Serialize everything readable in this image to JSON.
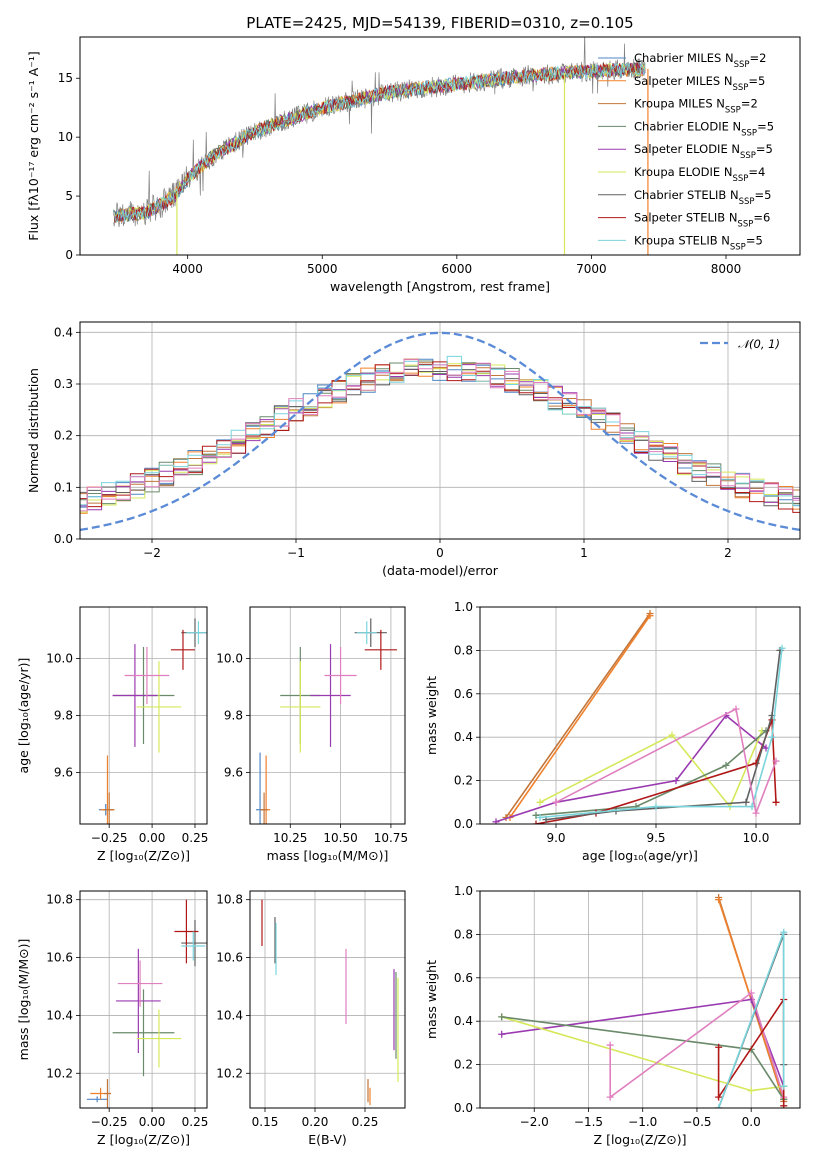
{
  "title": "PLATE=2425, MJD=54139, FIBERID=0310, z=0.105",
  "colors": {
    "Chabrier MILES": "#4f86c6",
    "Salpeter MILES": "#f0812c",
    "Kroupa MILES": "#c2763a",
    "Chabrier ELODIE": "#6a8a6a",
    "Salpeter ELODIE": "#9a3ab0",
    "Kroupa ELODIE": "#d6e85a",
    "Chabrier STELIB": "#606060",
    "Salpeter STELIB": "#b01818",
    "Kroupa STELIB": "#7ad4dc",
    "extra": "#e07fbf",
    "data": "#808080",
    "normal": "#5b8bd6"
  },
  "chart_data": [
    {
      "id": "spectrum",
      "type": "line",
      "xlabel": "wavelength [Angstrom, rest frame]",
      "ylabel": "Flux [fλ10⁻¹⁷ erg cm⁻² s⁻¹ A⁻¹]",
      "xlim": [
        3200,
        8550
      ],
      "ylim": [
        0,
        18.5
      ],
      "xticks": [
        "4000",
        "5000",
        "6000",
        "7000",
        "8000"
      ],
      "yticks": [
        "0",
        "5",
        "10",
        "15"
      ],
      "legend": [
        {
          "name": "Chabrier MILES",
          "nssp": "2"
        },
        {
          "name": "Salpeter MILES",
          "nssp": "5"
        },
        {
          "name": "Kroupa MILES",
          "nssp": "2"
        },
        {
          "name": "Chabrier ELODIE",
          "nssp": "5"
        },
        {
          "name": "Salpeter ELODIE",
          "nssp": "5"
        },
        {
          "name": "Kroupa ELODIE",
          "nssp": "4"
        },
        {
          "name": "Chabrier STELIB",
          "nssp": "5"
        },
        {
          "name": "Salpeter STELIB",
          "nssp": "6"
        },
        {
          "name": "Kroupa STELIB",
          "nssp": "5"
        }
      ],
      "continuum": [
        [
          3450,
          3.3
        ],
        [
          3700,
          3.6
        ],
        [
          3900,
          5.0
        ],
        [
          4000,
          6.5
        ],
        [
          4200,
          8.5
        ],
        [
          4500,
          10.5
        ],
        [
          5000,
          12.5
        ],
        [
          5500,
          13.8
        ],
        [
          6000,
          14.5
        ],
        [
          6500,
          15.2
        ],
        [
          7000,
          15.6
        ],
        [
          7400,
          15.8
        ]
      ]
    },
    {
      "id": "residuals",
      "type": "line",
      "xlabel": "(data-model)/error",
      "ylabel": "Normed distribution",
      "xlim": [
        -2.5,
        2.5
      ],
      "ylim": [
        0,
        0.42
      ],
      "xticks": [
        "−2",
        "−1",
        "0",
        "1",
        "2"
      ],
      "yticks": [
        "0.0",
        "0.1",
        "0.2",
        "0.3",
        "0.4"
      ],
      "legend_label": "𝒩(0, 1)"
    },
    {
      "id": "age-vs-Z",
      "type": "scatter",
      "xlabel": "Z [log₁₀(Z/Z⊙)]",
      "ylabel": "age  [log₁₀(age/yr)]",
      "xlim": [
        -0.42,
        0.32
      ],
      "ylim": [
        9.42,
        10.18
      ],
      "xticks": [
        "−0.25",
        "0.00",
        "0.25"
      ],
      "yticks": [
        "9.6",
        "9.8",
        "10.0"
      ],
      "points": [
        {
          "c": "Chabrier MILES",
          "x": -0.27,
          "y": 9.47,
          "xe": 0.04,
          "ye": 0.02
        },
        {
          "c": "Salpeter MILES",
          "x": -0.26,
          "y": 9.47,
          "xe": 0.04,
          "ye": 0.19
        },
        {
          "c": "Kroupa MILES",
          "x": -0.25,
          "y": 9.47,
          "xe": 0.03,
          "ye": 0.06
        },
        {
          "c": "Chabrier ELODIE",
          "x": -0.05,
          "y": 9.87,
          "xe": 0.18,
          "ye": 0.17
        },
        {
          "c": "Salpeter ELODIE",
          "x": -0.1,
          "y": 9.87,
          "xe": 0.13,
          "ye": 0.18
        },
        {
          "c": "Kroupa ELODIE",
          "x": 0.04,
          "y": 9.83,
          "xe": 0.13,
          "ye": 0.16
        },
        {
          "c": "Chabrier STELIB",
          "x": 0.25,
          "y": 10.09,
          "xe": 0.08,
          "ye": 0.05
        },
        {
          "c": "Salpeter STELIB",
          "x": 0.18,
          "y": 10.03,
          "xe": 0.07,
          "ye": 0.07
        },
        {
          "c": "Kroupa STELIB",
          "x": 0.27,
          "y": 10.09,
          "xe": 0.07,
          "ye": 0.04
        },
        {
          "c": "extra",
          "x": -0.03,
          "y": 9.94,
          "xe": 0.13,
          "ye": 0.1
        }
      ]
    },
    {
      "id": "age-vs-mass",
      "type": "scatter",
      "xlabel": "mass [log₁₀(M/M⊙)]",
      "xlim": [
        10.05,
        10.82
      ],
      "ylim": [
        9.42,
        10.18
      ],
      "xticks": [
        "10.25",
        "10.50",
        "10.75"
      ],
      "yticks": [
        "9.6",
        "9.8",
        "10.0"
      ],
      "points": [
        {
          "c": "Chabrier MILES",
          "x": 10.1,
          "y": 9.47,
          "xe": 0.02,
          "ye": 0.2
        },
        {
          "c": "Salpeter MILES",
          "x": 10.13,
          "y": 9.47,
          "xe": 0.02,
          "ye": 0.19
        },
        {
          "c": "Kroupa MILES",
          "x": 10.12,
          "y": 9.47,
          "xe": 0.02,
          "ye": 0.06
        },
        {
          "c": "Chabrier ELODIE",
          "x": 10.3,
          "y": 9.87,
          "xe": 0.1,
          "ye": 0.17
        },
        {
          "c": "Salpeter ELODIE",
          "x": 10.45,
          "y": 9.87,
          "xe": 0.1,
          "ye": 0.18
        },
        {
          "c": "Kroupa ELODIE",
          "x": 10.3,
          "y": 9.83,
          "xe": 0.1,
          "ye": 0.16
        },
        {
          "c": "Chabrier STELIB",
          "x": 10.65,
          "y": 10.09,
          "xe": 0.08,
          "ye": 0.05
        },
        {
          "c": "Salpeter STELIB",
          "x": 10.7,
          "y": 10.03,
          "xe": 0.08,
          "ye": 0.07
        },
        {
          "c": "Kroupa STELIB",
          "x": 10.63,
          "y": 10.09,
          "xe": 0.05,
          "ye": 0.04
        },
        {
          "c": "extra",
          "x": 10.5,
          "y": 9.94,
          "xe": 0.08,
          "ye": 0.1
        }
      ]
    },
    {
      "id": "weight-vs-age",
      "type": "line",
      "xlabel": "age  [log₁₀(age/yr)]",
      "ylabel": "mass weight",
      "xlim": [
        8.62,
        10.22
      ],
      "ylim": [
        0,
        1
      ],
      "xticks": [
        "9.0",
        "9.5",
        "10.0"
      ],
      "yticks": [
        "0.0",
        "0.2",
        "0.4",
        "0.6",
        "0.8",
        "1.0"
      ],
      "series": [
        {
          "c": "Kroupa MILES",
          "pts": [
            [
              8.75,
              0.03
            ],
            [
              9.47,
              0.97
            ]
          ]
        },
        {
          "c": "Salpeter MILES",
          "pts": [
            [
              8.77,
              0.03
            ],
            [
              9.47,
              0.96
            ]
          ]
        },
        {
          "c": "Salpeter ELODIE",
          "pts": [
            [
              8.7,
              0.01
            ],
            [
              9.0,
              0.1
            ],
            [
              9.6,
              0.2
            ],
            [
              9.85,
              0.5
            ],
            [
              10.05,
              0.35
            ]
          ]
        },
        {
          "c": "Kroupa ELODIE",
          "pts": [
            [
              8.92,
              0.1
            ],
            [
              9.58,
              0.41
            ],
            [
              9.87,
              0.08
            ],
            [
              10.03,
              0.43
            ]
          ]
        },
        {
          "c": "Chabrier ELODIE",
          "pts": [
            [
              8.9,
              0.04
            ],
            [
              9.4,
              0.08
            ],
            [
              9.85,
              0.27
            ],
            [
              10.05,
              0.43
            ]
          ]
        },
        {
          "c": "Salpeter STELIB",
          "pts": [
            [
              8.9,
              0.0
            ],
            [
              9.2,
              0.05
            ],
            [
              10.0,
              0.28
            ],
            [
              10.08,
              0.48
            ],
            [
              10.1,
              0.1
            ]
          ]
        },
        {
          "c": "Chabrier STELIB",
          "pts": [
            [
              8.95,
              0.02
            ],
            [
              9.3,
              0.06
            ],
            [
              9.95,
              0.1
            ],
            [
              10.08,
              0.5
            ],
            [
              10.12,
              0.8
            ]
          ]
        },
        {
          "c": "Kroupa STELIB",
          "pts": [
            [
              8.92,
              0.03
            ],
            [
              9.5,
              0.08
            ],
            [
              9.98,
              0.08
            ],
            [
              10.08,
              0.4
            ],
            [
              10.13,
              0.81
            ]
          ]
        },
        {
          "c": "extra",
          "pts": [
            [
              9.0,
              0.1
            ],
            [
              9.9,
              0.53
            ],
            [
              10.0,
              0.05
            ],
            [
              10.1,
              0.29
            ]
          ]
        }
      ]
    },
    {
      "id": "mass-vs-Z",
      "type": "scatter",
      "xlabel": "Z [log₁₀(Z/Z⊙)]",
      "ylabel": "mass [log₁₀(M/M⊙)]",
      "xlim": [
        -0.42,
        0.32
      ],
      "ylim": [
        10.08,
        10.83
      ],
      "xticks": [
        "−0.25",
        "0.00",
        "0.25"
      ],
      "yticks": [
        "10.2",
        "10.4",
        "10.6",
        "10.8"
      ],
      "points": [
        {
          "c": "Chabrier MILES",
          "x": -0.32,
          "y": 10.11,
          "xe": 0.06,
          "ye": 0.01
        },
        {
          "c": "Salpeter MILES",
          "x": -0.3,
          "y": 10.13,
          "xe": 0.06,
          "ye": 0.02
        },
        {
          "c": "Kroupa MILES",
          "x": -0.26,
          "y": 10.13,
          "xe": 0.02,
          "ye": 0.05
        },
        {
          "c": "Chabrier ELODIE",
          "x": -0.05,
          "y": 10.34,
          "xe": 0.18,
          "ye": 0.15
        },
        {
          "c": "Salpeter ELODIE",
          "x": -0.08,
          "y": 10.45,
          "xe": 0.13,
          "ye": 0.18
        },
        {
          "c": "Kroupa ELODIE",
          "x": 0.04,
          "y": 10.32,
          "xe": 0.13,
          "ye": 0.1
        },
        {
          "c": "Chabrier STELIB",
          "x": 0.25,
          "y": 10.65,
          "xe": 0.08,
          "ye": 0.08
        },
        {
          "c": "Salpeter STELIB",
          "x": 0.2,
          "y": 10.69,
          "xe": 0.07,
          "ye": 0.11
        },
        {
          "c": "Kroupa STELIB",
          "x": 0.24,
          "y": 10.64,
          "xe": 0.07,
          "ye": 0.05
        },
        {
          "c": "extra",
          "x": -0.07,
          "y": 10.51,
          "xe": 0.13,
          "ye": 0.08
        }
      ]
    },
    {
      "id": "mass-vs-EBV",
      "type": "scatter",
      "xlabel": "E(B-V)",
      "xlim": [
        0.135,
        0.29
      ],
      "ylim": [
        10.08,
        10.83
      ],
      "xticks": [
        "0.15",
        "0.20",
        "0.25"
      ],
      "yticks": [
        "10.2",
        "10.4",
        "10.6",
        "10.8"
      ],
      "points": [
        {
          "c": "Salpeter STELIB",
          "x": 0.147,
          "y": 10.72,
          "xe": 0,
          "ye": 0.08
        },
        {
          "c": "Chabrier STELIB",
          "x": 0.16,
          "y": 10.66,
          "xe": 0,
          "ye": 0.08
        },
        {
          "c": "Kroupa STELIB",
          "x": 0.161,
          "y": 10.63,
          "xe": 0,
          "ye": 0.09
        },
        {
          "c": "extra",
          "x": 0.231,
          "y": 10.5,
          "xe": 0,
          "ye": 0.13
        },
        {
          "c": "Kroupa MILES",
          "x": 0.253,
          "y": 10.14,
          "xe": 0,
          "ye": 0.04
        },
        {
          "c": "Salpeter MILES",
          "x": 0.255,
          "y": 10.12,
          "xe": 0,
          "ye": 0.03
        },
        {
          "c": "Salpeter ELODIE",
          "x": 0.279,
          "y": 10.42,
          "xe": 0,
          "ye": 0.14
        },
        {
          "c": "Chabrier ELODIE",
          "x": 0.281,
          "y": 10.4,
          "xe": 0,
          "ye": 0.15
        },
        {
          "c": "Kroupa ELODIE",
          "x": 0.283,
          "y": 10.35,
          "xe": 0,
          "ye": 0.18
        }
      ]
    },
    {
      "id": "weight-vs-Z",
      "type": "line",
      "xlabel": "Z [log₁₀(Z/Z⊙)]",
      "ylabel": "mass weight",
      "xlim": [
        -2.5,
        0.45
      ],
      "ylim": [
        0,
        1
      ],
      "xticks": [
        "−2.0",
        "−1.5",
        "−1.0",
        "−0.5",
        "0.0"
      ],
      "yticks": [
        "0.0",
        "0.2",
        "0.4",
        "0.6",
        "0.8",
        "1.0"
      ],
      "series": [
        {
          "c": "Kroupa MILES",
          "pts": [
            [
              -0.3,
              0.97
            ],
            [
              0.3,
              0.03
            ]
          ]
        },
        {
          "c": "Salpeter MILES",
          "pts": [
            [
              -0.3,
              0.96
            ],
            [
              0.3,
              0.04
            ]
          ]
        },
        {
          "c": "Salpeter ELODIE",
          "pts": [
            [
              -2.3,
              0.34
            ],
            [
              0.0,
              0.5
            ],
            [
              0.3,
              0.1
            ]
          ]
        },
        {
          "c": "Kroupa ELODIE",
          "pts": [
            [
              -2.3,
              0.42
            ],
            [
              0.0,
              0.08
            ],
            [
              0.3,
              0.1
            ]
          ]
        },
        {
          "c": "Chabrier ELODIE",
          "pts": [
            [
              -2.3,
              0.42
            ],
            [
              0.0,
              0.27
            ],
            [
              0.3,
              0.04
            ]
          ]
        },
        {
          "c": "extra",
          "pts": [
            [
              -1.3,
              0.29
            ],
            [
              -1.3,
              0.05
            ],
            [
              0.0,
              0.53
            ],
            [
              0.3,
              0.05
            ]
          ]
        },
        {
          "c": "Salpeter STELIB",
          "pts": [
            [
              -0.3,
              0.28
            ],
            [
              -0.3,
              0.05
            ],
            [
              0.3,
              0.5
            ],
            [
              0.3,
              0.01
            ]
          ]
        },
        {
          "c": "Chabrier STELIB",
          "pts": [
            [
              -0.3,
              0.0
            ],
            [
              0.3,
              0.8
            ],
            [
              0.3,
              0.2
            ]
          ]
        },
        {
          "c": "Kroupa STELIB",
          "pts": [
            [
              -0.3,
              0.0
            ],
            [
              0.3,
              0.81
            ],
            [
              0.3,
              0.1
            ]
          ]
        }
      ]
    }
  ]
}
